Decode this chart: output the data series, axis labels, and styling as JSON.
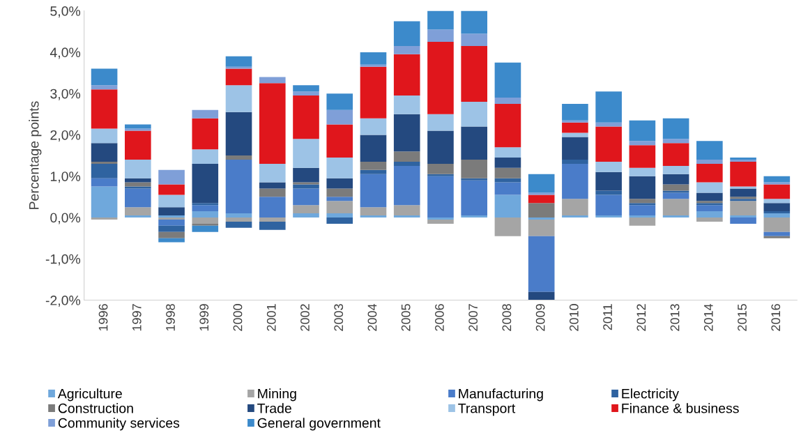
{
  "chart_data": {
    "type": "bar",
    "stacked": true,
    "ylabel": "Percentage points",
    "categories": [
      "1996",
      "1997",
      "1998",
      "1999",
      "2000",
      "2001",
      "2002",
      "2003",
      "2004",
      "2005",
      "2006",
      "2007",
      "2008",
      "2009",
      "2010",
      "2011",
      "2012",
      "2013",
      "2014",
      "2015",
      "2016"
    ],
    "series": [
      {
        "name": "Agriculture",
        "color": "#6fa8dc",
        "values": [
          0.75,
          0.05,
          0.05,
          0.15,
          0.1,
          0,
          0.1,
          0.1,
          0.05,
          0.05,
          -0.05,
          0.05,
          0.55,
          -0.05,
          0.05,
          0.05,
          0.05,
          0.05,
          0.15,
          0.05,
          0.1
        ]
      },
      {
        "name": "Mining",
        "color": "#a5a5a5",
        "values": [
          -0.05,
          0.2,
          -0.05,
          -0.15,
          -0.1,
          -0.1,
          0.2,
          0.3,
          0.2,
          0.25,
          -0.1,
          0,
          -0.45,
          -0.4,
          0.4,
          0,
          -0.2,
          0.4,
          -0.1,
          0.35,
          -0.35
        ]
      },
      {
        "name": "Manufacturing",
        "color": "#4a7cc9",
        "values": [
          0.2,
          0.45,
          -0.15,
          0.15,
          1.3,
          0.5,
          0.4,
          0.1,
          0.8,
          0.95,
          1.0,
          0.85,
          0.3,
          -1.35,
          0.85,
          0.5,
          0.25,
          0.15,
          0.15,
          -0.15,
          -0.1
        ]
      },
      {
        "name": "Electricity",
        "color": "#2f63a0",
        "values": [
          0.35,
          0.05,
          -0.15,
          0.05,
          -0.15,
          -0.2,
          0.1,
          -0.15,
          0.1,
          0.1,
          0.05,
          0.05,
          0.1,
          0,
          0.1,
          0.1,
          0.05,
          0.05,
          0.05,
          0.05,
          0.05
        ]
      },
      {
        "name": "Construction",
        "color": "#7b7b7b",
        "values": [
          0.05,
          0.1,
          -0.15,
          -0.05,
          0.1,
          0.2,
          0.05,
          0.2,
          0.2,
          0.25,
          0.25,
          0.45,
          0.25,
          0.35,
          0,
          0,
          0.1,
          0.15,
          0.05,
          0.05,
          -0.05
        ]
      },
      {
        "name": "Trade",
        "color": "#24497f",
        "values": [
          0.45,
          0.1,
          0.2,
          0.95,
          1.05,
          0.15,
          0.35,
          0.25,
          0.65,
          0.9,
          0.8,
          0.8,
          0.25,
          -0.2,
          0.55,
          0.45,
          0.55,
          0.25,
          0.2,
          0.2,
          0.2
        ]
      },
      {
        "name": "Transport",
        "color": "#9dc3e6",
        "values": [
          0.35,
          0.45,
          0.3,
          0.35,
          0.65,
          0.45,
          0.7,
          0.5,
          0.4,
          0.45,
          0.4,
          0.6,
          0.25,
          0,
          0.1,
          0.25,
          0.2,
          0.2,
          0.25,
          0.05,
          0.1
        ]
      },
      {
        "name": "Finance & business",
        "color": "#e0161c",
        "values": [
          0.95,
          0.7,
          0.25,
          0.75,
          0.4,
          1.95,
          1.05,
          0.8,
          1.25,
          1.0,
          1.75,
          1.35,
          1.05,
          0.2,
          0.25,
          0.85,
          0.55,
          0.55,
          0.45,
          0.6,
          0.35
        ]
      },
      {
        "name": "Community services",
        "color": "#7f9fd8",
        "values": [
          0.1,
          0.05,
          0.35,
          0.2,
          0.05,
          0.15,
          0.1,
          0.35,
          0.05,
          0.2,
          0.3,
          0.3,
          0.15,
          0.05,
          0.05,
          0.1,
          0.1,
          0.1,
          0.1,
          0.05,
          0.05
        ]
      },
      {
        "name": "General government",
        "color": "#3c8acb",
        "values": [
          0.4,
          0.1,
          -0.1,
          -0.15,
          0.25,
          0,
          0.15,
          0.4,
          0.3,
          0.6,
          0.45,
          0.55,
          0.85,
          0.45,
          0.4,
          0.75,
          0.5,
          0.5,
          0.45,
          0.05,
          0.15
        ]
      }
    ],
    "ylim": [
      -2.0,
      5.0
    ],
    "yticks": [
      {
        "value": -2.0,
        "label": "-2,0%"
      },
      {
        "value": -1.0,
        "label": "-1,0%"
      },
      {
        "value": 0.0,
        "label": "0,0%"
      },
      {
        "value": 1.0,
        "label": "1,0%"
      },
      {
        "value": 2.0,
        "label": "2,0%"
      },
      {
        "value": 3.0,
        "label": "3,0%"
      },
      {
        "value": 4.0,
        "label": "4,0%"
      },
      {
        "value": 5.0,
        "label": "5,0%"
      }
    ],
    "grid": false,
    "legend": "bottom"
  }
}
